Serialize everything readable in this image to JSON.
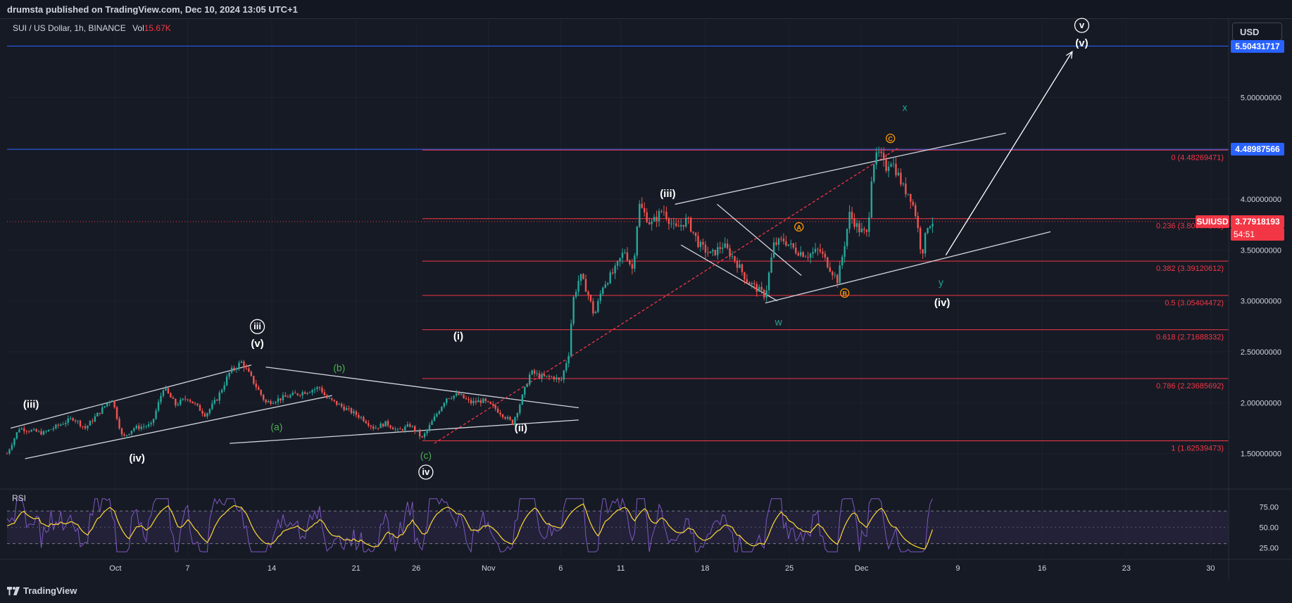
{
  "header": {
    "publisher": "drumsta published on TradingView.com, Dec 10, 2024 13:05 UTC+1"
  },
  "legend": {
    "symbol": "SUI / US Dollar, 1h, BINANCE",
    "vol_label": "Vol",
    "vol_value": "15.67K"
  },
  "currency_button": "USD",
  "footer": {
    "brand": "TradingView",
    "icon": "tradingview-logo-icon"
  },
  "colors": {
    "background": "#161a25",
    "up": "#26a69a",
    "down": "#ef5350",
    "fib": "#f23645",
    "blue_line": "#2962ff",
    "rsi": "#7e57c2",
    "rsi_ma": "#fdd835",
    "wave_white": "#ffffff",
    "wave_green": "#4caf50",
    "wave_teal": "#26a69a",
    "wave_orange": "#ff9800"
  },
  "chart_data": {
    "type": "candlestick",
    "symbol": "SUIUSD",
    "interval": "1h",
    "price_axis": {
      "ticks": [
        "5.00000000",
        "4.50000000",
        "4.00000000",
        "3.50000000",
        "3.00000000",
        "2.50000000",
        "2.00000000",
        "1.50000000"
      ],
      "tick_values": [
        5.0,
        4.5,
        4.0,
        3.5,
        3.0,
        2.5,
        2.0,
        1.5
      ],
      "range": [
        1.2,
        5.75
      ]
    },
    "time_axis": {
      "labels": [
        "Oct",
        "7",
        "14",
        "21",
        "26",
        "Nov",
        "6",
        "11",
        "18",
        "25",
        "Dec",
        "9",
        "16",
        "23",
        "30"
      ],
      "positions": [
        9.0,
        15.0,
        22.0,
        29.0,
        34.0,
        40.0,
        46.0,
        51.0,
        58.0,
        65.0,
        71.0,
        79.0,
        86.0,
        93.0,
        100.0
      ]
    },
    "price_labels": [
      {
        "text": "5.50431717",
        "value": 5.50431717,
        "color": "#2962ff"
      },
      {
        "text": "4.48987566",
        "value": 4.48987566,
        "color": "#2962ff"
      },
      {
        "text": "SUIUSD",
        "value": 3.77918193,
        "color": "#f23645"
      },
      {
        "text": "3.77918193",
        "value": 3.77918193,
        "color": "#f23645"
      },
      {
        "text": "54:51",
        "value": 3.77918193,
        "color": "#f23645"
      }
    ],
    "horizontal_lines": [
      {
        "value": 5.50431717,
        "color": "#2962ff"
      },
      {
        "value": 4.48987566,
        "color": "#2962ff"
      }
    ],
    "fib_levels": [
      {
        "label": "0 (4.48269471)",
        "value": 4.48269471
      },
      {
        "label": "0.236 (3.80897192)",
        "value": 3.80897192
      },
      {
        "label": "0.382 (3.39120612)",
        "value": 3.39120612
      },
      {
        "label": "0.5 (3.05404472)",
        "value": 3.05404472
      },
      {
        "label": "0.618 (2.71688332)",
        "value": 2.71688332
      },
      {
        "label": "0.786 (2.23685692)",
        "value": 2.23685692
      },
      {
        "label": "1 (1.62539473)",
        "value": 1.62539473
      }
    ],
    "fib_start_day": 34.5,
    "current_price": 3.77918193,
    "path": [
      [
        0.0,
        1.5
      ],
      [
        1.0,
        1.75
      ],
      [
        3.0,
        1.7
      ],
      [
        5.5,
        1.85
      ],
      [
        6.5,
        1.75
      ],
      [
        8.0,
        1.95
      ],
      [
        8.7,
        2.05
      ],
      [
        9.6,
        1.65
      ],
      [
        10.5,
        1.75
      ],
      [
        12.0,
        1.78
      ],
      [
        13.0,
        2.15
      ],
      [
        14.0,
        1.98
      ],
      [
        15.0,
        2.05
      ],
      [
        16.5,
        1.88
      ],
      [
        17.5,
        2.05
      ],
      [
        18.5,
        2.3
      ],
      [
        19.5,
        2.4
      ],
      [
        20.5,
        2.2
      ],
      [
        21.5,
        2.0
      ],
      [
        23.0,
        2.05
      ],
      [
        24.5,
        2.1
      ],
      [
        26.0,
        2.15
      ],
      [
        26.5,
        2.05
      ],
      [
        28.0,
        1.95
      ],
      [
        29.5,
        1.85
      ],
      [
        30.5,
        1.75
      ],
      [
        31.5,
        1.8
      ],
      [
        32.5,
        1.72
      ],
      [
        33.5,
        1.78
      ],
      [
        34.5,
        1.65
      ],
      [
        35.5,
        1.85
      ],
      [
        36.5,
        2.05
      ],
      [
        37.5,
        2.08
      ],
      [
        38.5,
        2.0
      ],
      [
        39.5,
        2.02
      ],
      [
        40.5,
        1.95
      ],
      [
        41.5,
        1.85
      ],
      [
        42.0,
        1.8
      ],
      [
        42.5,
        1.95
      ],
      [
        43.5,
        2.3
      ],
      [
        44.5,
        2.25
      ],
      [
        45.5,
        2.25
      ],
      [
        46.0,
        2.2
      ],
      [
        46.7,
        2.5
      ],
      [
        47.0,
        3.0
      ],
      [
        47.6,
        3.25
      ],
      [
        48.2,
        3.1
      ],
      [
        48.8,
        2.85
      ],
      [
        49.5,
        3.15
      ],
      [
        50.5,
        3.3
      ],
      [
        51.3,
        3.5
      ],
      [
        52.0,
        3.3
      ],
      [
        52.5,
        3.95
      ],
      [
        53.5,
        3.75
      ],
      [
        54.5,
        3.9
      ],
      [
        55.5,
        3.7
      ],
      [
        56.5,
        3.8
      ],
      [
        57.5,
        3.55
      ],
      [
        58.5,
        3.45
      ],
      [
        59.5,
        3.55
      ],
      [
        60.5,
        3.4
      ],
      [
        61.5,
        3.2
      ],
      [
        62.5,
        3.1
      ],
      [
        63.0,
        3.05
      ],
      [
        63.7,
        3.55
      ],
      [
        64.5,
        3.6
      ],
      [
        65.5,
        3.5
      ],
      [
        66.5,
        3.45
      ],
      [
        67.5,
        3.5
      ],
      [
        68.5,
        3.3
      ],
      [
        69.0,
        3.2
      ],
      [
        69.5,
        3.5
      ],
      [
        70.0,
        3.85
      ],
      [
        70.8,
        3.7
      ],
      [
        71.5,
        3.65
      ],
      [
        71.9,
        4.35
      ],
      [
        72.5,
        4.45
      ],
      [
        73.0,
        4.3
      ],
      [
        73.4,
        4.4
      ],
      [
        74.0,
        4.25
      ],
      [
        74.5,
        4.1
      ],
      [
        75.0,
        4.05
      ],
      [
        75.5,
        3.85
      ],
      [
        76.0,
        3.45
      ],
      [
        76.5,
        3.75
      ],
      [
        76.9,
        3.78
      ]
    ],
    "candle_count": 380,
    "rsi": {
      "label": "RSI",
      "ticks": [
        "75.00",
        "50.00",
        "25.00"
      ],
      "tick_values": [
        75,
        50,
        25
      ],
      "upper_band": 70,
      "lower_band": 30,
      "range": [
        15,
        90
      ]
    },
    "drawings": {
      "lines": [
        {
          "from": [
            0.3,
            1.75
          ],
          "to": [
            20.3,
            2.37
          ],
          "color": "#d1d4dc"
        },
        {
          "from": [
            1.5,
            1.45
          ],
          "to": [
            27.0,
            2.07
          ],
          "color": "#d1d4dc"
        },
        {
          "from": [
            21.5,
            2.35
          ],
          "to": [
            47.5,
            1.95
          ],
          "color": "#d1d4dc"
        },
        {
          "from": [
            18.5,
            1.6
          ],
          "to": [
            47.5,
            1.83
          ],
          "color": "#d1d4dc"
        },
        {
          "from": [
            55.5,
            3.95
          ],
          "to": [
            83.0,
            4.65
          ],
          "color": "#d1d4dc"
        },
        {
          "from": [
            63.0,
            2.98
          ],
          "to": [
            86.7,
            3.68
          ],
          "color": "#d1d4dc"
        },
        {
          "from": [
            56.0,
            3.55
          ],
          "to": [
            64.0,
            3.0
          ],
          "color": "#d1d4dc"
        },
        {
          "from": [
            59.0,
            3.95
          ],
          "to": [
            66.0,
            3.25
          ],
          "color": "#d1d4dc"
        },
        {
          "from": [
            35.5,
            1.6
          ],
          "to": [
            74.0,
            4.5
          ],
          "color": "#f23645",
          "dashed": true
        },
        {
          "from": [
            78.0,
            3.45
          ],
          "to": [
            88.5,
            5.45
          ],
          "color": "#ffffff",
          "arrow": true
        }
      ],
      "labels": [
        {
          "text": "(iii)",
          "at": [
            2.0,
            1.95
          ],
          "color": "#ffffff"
        },
        {
          "text": "(iv)",
          "at": [
            10.8,
            1.42
          ],
          "color": "#ffffff"
        },
        {
          "text": "(v)",
          "at": [
            20.8,
            2.55
          ],
          "color": "#ffffff"
        },
        {
          "text": "iii",
          "at": [
            20.8,
            2.72
          ],
          "color": "#ffffff",
          "circled": true
        },
        {
          "text": "(a)",
          "at": [
            22.4,
            1.73
          ],
          "color": "#4caf50"
        },
        {
          "text": "(b)",
          "at": [
            27.6,
            2.31
          ],
          "color": "#4caf50"
        },
        {
          "text": "(c)",
          "at": [
            34.8,
            1.45
          ],
          "color": "#4caf50"
        },
        {
          "text": "iv",
          "at": [
            34.8,
            1.29
          ],
          "color": "#ffffff",
          "circled": true
        },
        {
          "text": "(i)",
          "at": [
            37.5,
            2.62
          ],
          "color": "#ffffff"
        },
        {
          "text": "(ii)",
          "at": [
            42.7,
            1.72
          ],
          "color": "#ffffff"
        },
        {
          "text": "(iii)",
          "at": [
            54.9,
            4.02
          ],
          "color": "#ffffff"
        },
        {
          "text": "w",
          "at": [
            64.1,
            2.76
          ],
          "color": "#26a69a"
        },
        {
          "text": "A",
          "at": [
            65.8,
            3.7
          ],
          "color": "#ff9800",
          "circled": true
        },
        {
          "text": "B",
          "at": [
            69.6,
            3.05
          ],
          "color": "#ff9800",
          "circled": true
        },
        {
          "text": "C",
          "at": [
            73.4,
            4.57
          ],
          "color": "#ff9800",
          "circled": true
        },
        {
          "text": "x",
          "at": [
            74.6,
            4.87
          ],
          "color": "#26a69a"
        },
        {
          "text": "y",
          "at": [
            77.6,
            3.15
          ],
          "color": "#26a69a"
        },
        {
          "text": "(iv)",
          "at": [
            77.7,
            2.95
          ],
          "color": "#ffffff"
        },
        {
          "text": "(v)",
          "at": [
            89.3,
            5.5
          ],
          "color": "#ffffff"
        },
        {
          "text": "v",
          "at": [
            89.3,
            5.68
          ],
          "color": "#ffffff",
          "circled": true
        }
      ]
    }
  }
}
